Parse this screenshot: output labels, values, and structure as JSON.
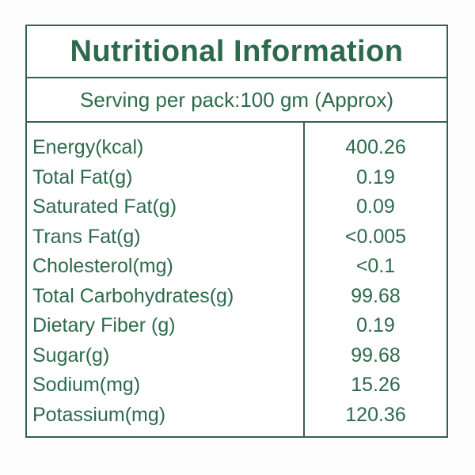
{
  "colors": {
    "text_green": "#2d6a4c",
    "border_green": "#35624e",
    "background": "#fdfdfd",
    "card_background": "#ffffff"
  },
  "header": {
    "title": "Nutritional Information"
  },
  "serving": {
    "text": "Serving per pack:100 gm (Approx)"
  },
  "table": {
    "rows": [
      {
        "label": "Energy(kcal)",
        "value": "400.26"
      },
      {
        "label": "Total Fat(g)",
        "value": "0.19"
      },
      {
        "label": "Saturated Fat(g)",
        "value": "0.09"
      },
      {
        "label": "Trans Fat(g)",
        "value": "<0.005"
      },
      {
        "label": "Cholesterol(mg)",
        "value": "<0.1"
      },
      {
        "label": "Total Carbohydrates(g)",
        "value": "99.68"
      },
      {
        "label": "Dietary Fiber (g)",
        "value": "0.19"
      },
      {
        "label": "Sugar(g)",
        "value": "99.68"
      },
      {
        "label": "Sodium(mg)",
        "value": "15.26"
      },
      {
        "label": "Potassium(mg)",
        "value": "120.36"
      }
    ]
  }
}
